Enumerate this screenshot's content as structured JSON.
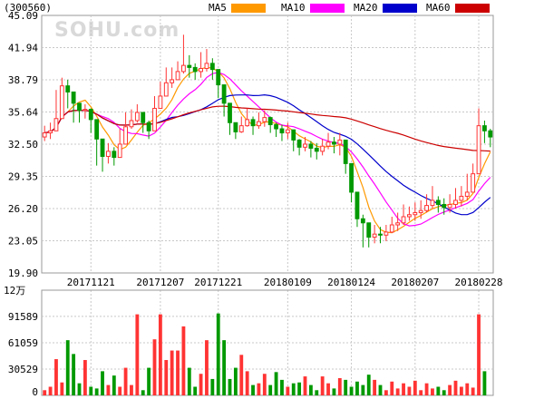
{
  "chart_data": {
    "type": "candlestick",
    "code": "(300560)",
    "watermark": "SOHU.com",
    "legend": [
      {
        "name": "MA5",
        "color": "#ff9900"
      },
      {
        "name": "MA10",
        "color": "#ff00ff"
      },
      {
        "name": "MA20",
        "color": "#0000cc"
      },
      {
        "name": "MA60",
        "color": "#cc0000"
      }
    ],
    "price_axis": {
      "ticks": [
        "45.09",
        "41.94",
        "38.79",
        "35.64",
        "32.50",
        "29.35",
        "26.20",
        "23.05",
        "19.90"
      ],
      "ylim": [
        19.9,
        45.09
      ]
    },
    "date_labels": [
      {
        "label": "20171121",
        "index": 8
      },
      {
        "label": "20171207",
        "index": 20
      },
      {
        "label": "20171221",
        "index": 30
      },
      {
        "label": "20180109",
        "index": 42
      },
      {
        "label": "20180124",
        "index": 53
      },
      {
        "label": "20180207",
        "index": 64
      },
      {
        "label": "20180228",
        "index": 75
      }
    ],
    "volume_axis": {
      "unit": "12万",
      "ticks": [
        "91589",
        "61059",
        "30529",
        "0"
      ],
      "ylim": [
        0,
        122000
      ]
    },
    "colors": {
      "up": "#ff3333",
      "down": "#009900",
      "grid": "#c8c8c8"
    },
    "closes": [
      33.6,
      33.8,
      35.0,
      38.2,
      37.6,
      36.5,
      35.8,
      35.9,
      34.9,
      33.0,
      31.3,
      31.8,
      31.2,
      32.5,
      34.2,
      34.8,
      35.6,
      34.6,
      33.8,
      36.0,
      37.2,
      38.5,
      38.8,
      39.6,
      40.2,
      40.0,
      39.6,
      39.9,
      40.4,
      39.8,
      38.3,
      36.5,
      34.6,
      33.7,
      34.3,
      34.9,
      34.3,
      34.7,
      35.1,
      34.4,
      34.0,
      33.6,
      33.9,
      32.9,
      32.2,
      32.5,
      32.1,
      31.8,
      32.3,
      32.7,
      32.5,
      32.9,
      30.6,
      27.8,
      25.2,
      24.8,
      23.4,
      23.7,
      23.6,
      23.9,
      24.6,
      24.8,
      25.4,
      25.6,
      25.8,
      26.0,
      26.5,
      27.0,
      26.6,
      26.3,
      26.6,
      27.0,
      27.4,
      27.8,
      29.6,
      34.3,
      33.8,
      33.2
    ],
    "highs": [
      34.3,
      34.6,
      37.8,
      39.0,
      38.8,
      37.6,
      36.4,
      36.4,
      36.0,
      33.9,
      32.1,
      32.6,
      32.2,
      34.0,
      35.6,
      35.9,
      36.4,
      35.6,
      34.8,
      37.2,
      38.6,
      40.0,
      40.0,
      40.6,
      43.2,
      41.2,
      40.4,
      41.5,
      41.8,
      40.9,
      39.2,
      37.6,
      35.6,
      34.6,
      35.2,
      36.0,
      35.2,
      35.6,
      35.8,
      35.2,
      34.6,
      34.4,
      34.6,
      33.6,
      33.0,
      33.2,
      32.8,
      32.6,
      33.0,
      33.6,
      33.2,
      33.6,
      31.6,
      29.0,
      26.4,
      25.6,
      24.6,
      24.6,
      24.4,
      24.6,
      25.4,
      25.8,
      26.6,
      26.4,
      26.8,
      27.0,
      27.6,
      28.4,
      27.4,
      27.2,
      27.6,
      28.2,
      28.4,
      29.6,
      30.6,
      36.0,
      34.8,
      34.0
    ],
    "lows": [
      32.8,
      33.0,
      34.2,
      36.6,
      36.0,
      34.6,
      34.6,
      35.0,
      33.6,
      30.4,
      29.8,
      30.6,
      30.4,
      31.4,
      33.6,
      34.0,
      34.6,
      33.6,
      33.0,
      35.2,
      36.4,
      37.6,
      38.0,
      38.8,
      39.4,
      39.0,
      38.8,
      39.0,
      39.6,
      38.8,
      37.0,
      35.2,
      33.4,
      33.0,
      33.6,
      34.2,
      33.4,
      34.0,
      34.2,
      33.6,
      33.2,
      32.8,
      33.0,
      31.8,
      31.4,
      31.8,
      31.2,
      31.0,
      31.4,
      32.0,
      31.6,
      31.4,
      29.6,
      26.8,
      24.4,
      22.4,
      22.4,
      22.8,
      22.8,
      23.0,
      23.8,
      24.0,
      24.6,
      25.0,
      25.0,
      25.2,
      25.8,
      26.2,
      25.8,
      25.6,
      25.8,
      26.2,
      26.4,
      27.0,
      28.6,
      33.0,
      32.6,
      32.2
    ],
    "volumes": [
      6000,
      10000,
      42000,
      15000,
      64000,
      48000,
      14000,
      41000,
      10000,
      8000,
      28000,
      12000,
      23000,
      10000,
      32000,
      12000,
      94000,
      6000,
      32000,
      65000,
      94000,
      41000,
      52000,
      52000,
      80000,
      32000,
      10000,
      25000,
      64000,
      19000,
      95000,
      64000,
      19000,
      32000,
      47000,
      28000,
      12000,
      14000,
      25000,
      12000,
      27000,
      18000,
      10000,
      14000,
      15000,
      22000,
      12000,
      6000,
      22000,
      14000,
      8000,
      20000,
      18000,
      10000,
      16000,
      12000,
      24000,
      18000,
      12000,
      6000,
      16000,
      8000,
      14000,
      10000,
      17000,
      6000,
      14000,
      8000,
      10000,
      6000,
      12000,
      17000,
      10000,
      14000,
      9000,
      94000,
      28000,
      0
    ]
  }
}
